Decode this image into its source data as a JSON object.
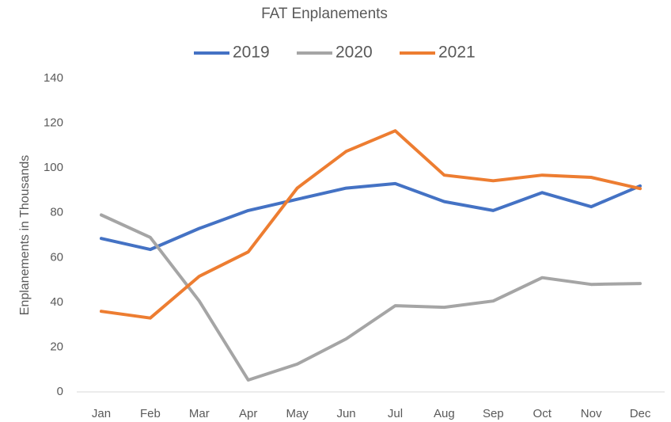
{
  "chart_data": {
    "type": "line",
    "title": "FAT Enplanements",
    "y_label": "Enplanements in Thousands",
    "categories": [
      "Jan",
      "Feb",
      "Mar",
      "Apr",
      "May",
      "Jun",
      "Jul",
      "Aug",
      "Sep",
      "Oct",
      "Nov",
      "Dec"
    ],
    "series": [
      {
        "name": "2019",
        "color": "#4472c4",
        "values": [
          68.5,
          63.6,
          73,
          81,
          86,
          91,
          93,
          85,
          81,
          89,
          82.7,
          92
        ]
      },
      {
        "name": "2020",
        "color": "#a5a5a5",
        "values": [
          79,
          69,
          40.6,
          5.3,
          12.4,
          23.7,
          38.5,
          37.8,
          40.6,
          51,
          48,
          48.4
        ]
      },
      {
        "name": "2021",
        "color": "#ed7d31",
        "values": [
          36,
          33,
          51.6,
          62.5,
          91,
          107.4,
          116.6,
          96.8,
          94.3,
          96.8,
          95.8,
          90.8
        ]
      }
    ],
    "ylim": [
      0,
      140
    ],
    "yticks": [
      0,
      20,
      40,
      60,
      80,
      100,
      120,
      140
    ],
    "grid": false,
    "legend": "top"
  }
}
